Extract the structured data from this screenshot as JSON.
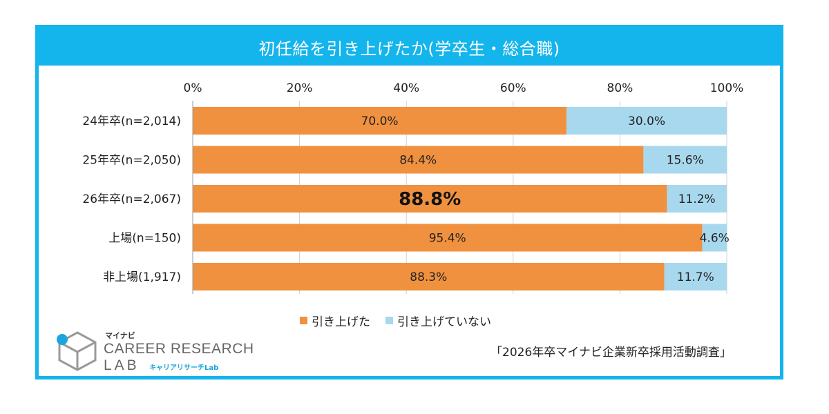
{
  "title": "初任給を引き上げたか(学卒生・総合職)",
  "colors": {
    "frame": "#14b4ec",
    "raised": "#f0913f",
    "not_raised": "#a8d8ee"
  },
  "logo": {
    "brand": "マイナビ",
    "line1": "CAREER RESEARCH",
    "line2": "LAB",
    "sub": "キャリアリサーチLab"
  },
  "source": "「2026年卒マイナビ企業新卒採用活動調査」",
  "chart_data": {
    "type": "bar",
    "orientation": "horizontal",
    "stacked": true,
    "categories": [
      "24年卒(n=2,014)",
      "25年卒(n=2,050)",
      "26年卒(n=2,067)",
      "上場(n=150)",
      "非上場(1,917)"
    ],
    "series": [
      {
        "name": "引き上げた",
        "values": [
          70.0,
          84.4,
          88.8,
          95.4,
          88.3
        ],
        "color": "#f0913f"
      },
      {
        "name": "引き上げていない",
        "values": [
          30.0,
          15.6,
          11.2,
          4.6,
          11.7
        ],
        "color": "#a8d8ee"
      }
    ],
    "value_labels": [
      [
        "70.0%",
        "84.4%",
        "88.8%",
        "95.4%",
        "88.3%"
      ],
      [
        "30.0%",
        "15.6%",
        "11.2%",
        "4.6%",
        "11.7%"
      ]
    ],
    "highlight_category": "26年卒(n=2,067)",
    "xlim": [
      0,
      100
    ],
    "x_ticks": [
      "0%",
      "20%",
      "40%",
      "60%",
      "80%",
      "100%"
    ],
    "grid": true,
    "legend_position": "bottom"
  }
}
